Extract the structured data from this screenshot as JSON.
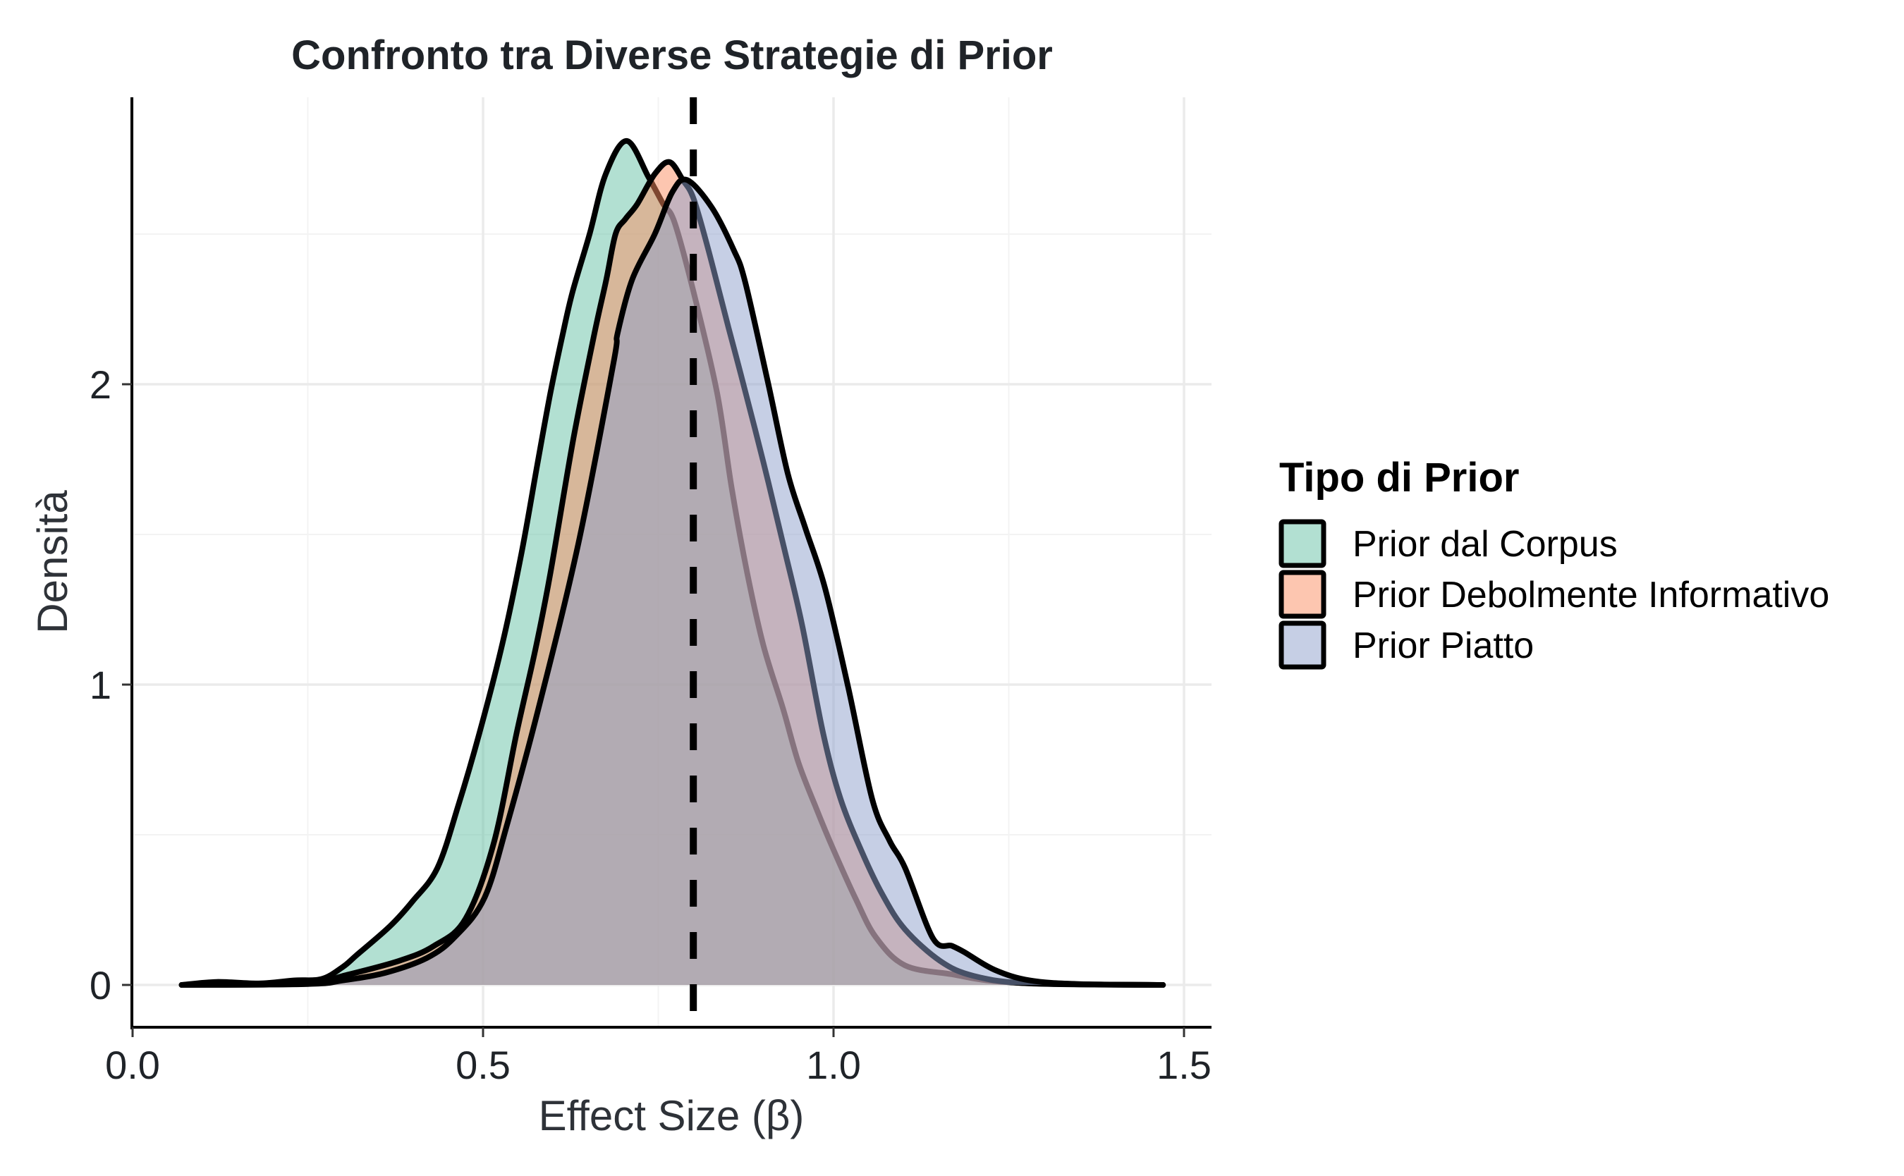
{
  "chart_data": {
    "type": "area",
    "subtype": "density",
    "title": "Confronto tra Diverse Strategie di Prior",
    "xlabel": "Effect Size (β)",
    "ylabel": "Densità",
    "xlim": [
      0.0,
      1.54
    ],
    "ylim": [
      -0.14,
      3.05
    ],
    "x_ticks": [
      0.0,
      0.5,
      1.0,
      1.5
    ],
    "x_tick_labels": [
      "0.0",
      "0.5",
      "1.0",
      "1.5"
    ],
    "y_ticks": [
      0,
      1,
      2
    ],
    "y_tick_labels": [
      "0",
      "1",
      "2"
    ],
    "x_minor_grid": [
      0.25,
      0.75,
      1.25
    ],
    "y_minor_grid": [
      0.5,
      1.5,
      2.5
    ],
    "grid": true,
    "reference_line": {
      "x": 0.8,
      "style": "dashed",
      "color": "#000000"
    },
    "legend": {
      "title": "Tipo di Prior",
      "position": "right"
    },
    "series": [
      {
        "name": "Prior dal Corpus",
        "color": "#66C2A5",
        "points": [
          [
            0.07,
            0
          ],
          [
            0.12,
            0.01
          ],
          [
            0.18,
            0.005
          ],
          [
            0.23,
            0.015
          ],
          [
            0.27,
            0.02
          ],
          [
            0.3,
            0.06
          ],
          [
            0.32,
            0.1
          ],
          [
            0.367,
            0.195
          ],
          [
            0.4,
            0.28
          ],
          [
            0.435,
            0.39
          ],
          [
            0.465,
            0.6
          ],
          [
            0.495,
            0.84
          ],
          [
            0.528,
            1.14
          ],
          [
            0.555,
            1.44
          ],
          [
            0.578,
            1.74
          ],
          [
            0.596,
            1.97
          ],
          [
            0.614,
            2.17
          ],
          [
            0.628,
            2.31
          ],
          [
            0.652,
            2.5
          ],
          [
            0.675,
            2.7
          ],
          [
            0.705,
            2.81
          ],
          [
            0.736,
            2.69
          ],
          [
            0.757,
            2.6
          ],
          [
            0.773,
            2.54
          ],
          [
            0.8,
            2.31
          ],
          [
            0.834,
            1.97
          ],
          [
            0.855,
            1.65
          ],
          [
            0.877,
            1.37
          ],
          [
            0.9,
            1.13
          ],
          [
            0.928,
            0.92
          ],
          [
            0.95,
            0.74
          ],
          [
            0.975,
            0.59
          ],
          [
            1.0,
            0.45
          ],
          [
            1.031,
            0.29
          ],
          [
            1.06,
            0.16
          ],
          [
            1.102,
            0.065
          ],
          [
            1.17,
            0.035
          ],
          [
            1.22,
            0.015
          ],
          [
            1.3,
            0.004
          ],
          [
            1.47,
            0
          ]
        ]
      },
      {
        "name": "Prior Debolmente Informativo",
        "color": "#FC8D62",
        "points": [
          [
            0.07,
            0
          ],
          [
            0.25,
            0.004
          ],
          [
            0.3,
            0.03
          ],
          [
            0.38,
            0.08
          ],
          [
            0.43,
            0.13
          ],
          [
            0.475,
            0.22
          ],
          [
            0.515,
            0.47
          ],
          [
            0.548,
            0.84
          ],
          [
            0.575,
            1.12
          ],
          [
            0.596,
            1.37
          ],
          [
            0.629,
            1.82
          ],
          [
            0.659,
            2.17
          ],
          [
            0.676,
            2.35
          ],
          [
            0.689,
            2.5
          ],
          [
            0.703,
            2.55
          ],
          [
            0.72,
            2.6
          ],
          [
            0.745,
            2.7
          ],
          [
            0.766,
            2.74
          ],
          [
            0.785,
            2.68
          ],
          [
            0.8,
            2.62
          ],
          [
            0.82,
            2.46
          ],
          [
            0.85,
            2.19
          ],
          [
            0.867,
            2.04
          ],
          [
            0.9,
            1.74
          ],
          [
            0.93,
            1.45
          ],
          [
            0.955,
            1.2
          ],
          [
            0.985,
            0.84
          ],
          [
            1.01,
            0.62
          ],
          [
            1.041,
            0.44
          ],
          [
            1.07,
            0.3
          ],
          [
            1.102,
            0.185
          ],
          [
            1.152,
            0.08
          ],
          [
            1.2,
            0.03
          ],
          [
            1.28,
            0.005
          ],
          [
            1.47,
            0
          ]
        ]
      },
      {
        "name": "Prior Piatto",
        "color": "#8DA0CB",
        "points": [
          [
            0.07,
            0
          ],
          [
            0.25,
            0.003
          ],
          [
            0.3,
            0.015
          ],
          [
            0.36,
            0.04
          ],
          [
            0.42,
            0.09
          ],
          [
            0.46,
            0.16
          ],
          [
            0.502,
            0.29
          ],
          [
            0.535,
            0.54
          ],
          [
            0.579,
            0.92
          ],
          [
            0.636,
            1.47
          ],
          [
            0.686,
            2.07
          ],
          [
            0.692,
            2.17
          ],
          [
            0.713,
            2.35
          ],
          [
            0.745,
            2.5
          ],
          [
            0.77,
            2.64
          ],
          [
            0.791,
            2.68
          ],
          [
            0.826,
            2.59
          ],
          [
            0.857,
            2.45
          ],
          [
            0.874,
            2.34
          ],
          [
            0.907,
            2.0
          ],
          [
            0.935,
            1.7
          ],
          [
            0.96,
            1.52
          ],
          [
            0.988,
            1.32
          ],
          [
            1.021,
            0.99
          ],
          [
            1.055,
            0.62
          ],
          [
            1.08,
            0.48
          ],
          [
            1.102,
            0.39
          ],
          [
            1.142,
            0.155
          ],
          [
            1.169,
            0.13
          ],
          [
            1.186,
            0.11
          ],
          [
            1.23,
            0.05
          ],
          [
            1.28,
            0.015
          ],
          [
            1.35,
            0.003
          ],
          [
            1.47,
            0
          ]
        ]
      }
    ]
  }
}
